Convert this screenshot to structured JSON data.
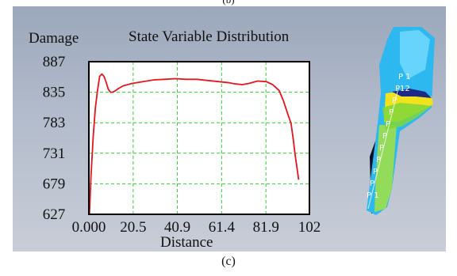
{
  "captions": {
    "top": "(b)",
    "bottom": "(c)"
  },
  "chart_data": {
    "type": "line",
    "title": "State Variable Distribution",
    "ylabel": "Damage",
    "xlabel": "Distance",
    "x_ticks": [
      "0.000",
      "20.5",
      "40.9",
      "61.4",
      "81.9",
      "102"
    ],
    "y_ticks": [
      "627",
      "679",
      "731",
      "783",
      "835",
      "887"
    ],
    "xlim": [
      0,
      102
    ],
    "ylim": [
      627,
      887
    ],
    "grid": true,
    "series": [
      {
        "color": "#e8141e",
        "x": [
          0.3,
          1,
          2,
          3,
          4,
          5,
          6,
          7,
          8,
          9,
          10,
          11,
          12,
          14,
          16,
          18,
          20,
          25,
          30,
          35,
          40,
          45,
          50,
          55,
          60,
          65,
          68,
          71,
          74,
          78,
          82,
          85,
          88,
          90,
          92,
          93.5,
          94.5,
          95.5,
          96.3,
          97
        ],
        "y": [
          628,
          692,
          760,
          808,
          838,
          862,
          866,
          862,
          852,
          840,
          835,
          835,
          837,
          842,
          846,
          848,
          850,
          853,
          856,
          857,
          858,
          857,
          857,
          855,
          853,
          851,
          849,
          848,
          850,
          854,
          853,
          848,
          838,
          820,
          798,
          782,
          755,
          725,
          705,
          686
        ]
      }
    ]
  },
  "model": {
    "probe_labels": [
      "P 1",
      "P12",
      "P",
      "P",
      "P",
      "P",
      "P",
      "P",
      "P",
      "P",
      "P 1"
    ]
  },
  "colors": {
    "curve": "#e8141e",
    "grid": "#2ed12e",
    "plot_bg": "#ffffff",
    "panel_bg": "#b3bccc"
  }
}
